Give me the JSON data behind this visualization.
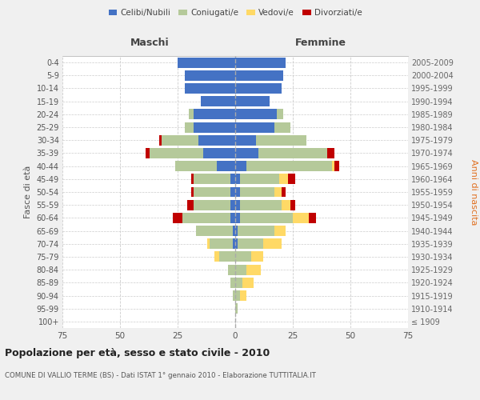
{
  "age_groups": [
    "100+",
    "95-99",
    "90-94",
    "85-89",
    "80-84",
    "75-79",
    "70-74",
    "65-69",
    "60-64",
    "55-59",
    "50-54",
    "45-49",
    "40-44",
    "35-39",
    "30-34",
    "25-29",
    "20-24",
    "15-19",
    "10-14",
    "5-9",
    "0-4"
  ],
  "birth_years": [
    "≤ 1909",
    "1910-1914",
    "1915-1919",
    "1920-1924",
    "1925-1929",
    "1930-1934",
    "1935-1939",
    "1940-1944",
    "1945-1949",
    "1950-1954",
    "1955-1959",
    "1960-1964",
    "1965-1969",
    "1970-1974",
    "1975-1979",
    "1980-1984",
    "1985-1989",
    "1990-1994",
    "1995-1999",
    "2000-2004",
    "2005-2009"
  ],
  "male": {
    "celibi": [
      0,
      0,
      0,
      0,
      0,
      0,
      1,
      1,
      2,
      2,
      2,
      2,
      8,
      14,
      16,
      18,
      18,
      15,
      22,
      22,
      25
    ],
    "coniugati": [
      0,
      0,
      1,
      2,
      3,
      7,
      10,
      16,
      21,
      16,
      16,
      16,
      18,
      23,
      16,
      4,
      2,
      0,
      0,
      0,
      0
    ],
    "vedovi": [
      0,
      0,
      0,
      0,
      0,
      2,
      1,
      0,
      0,
      0,
      0,
      0,
      0,
      0,
      0,
      0,
      0,
      0,
      0,
      0,
      0
    ],
    "divorziati": [
      0,
      0,
      0,
      0,
      0,
      0,
      0,
      0,
      4,
      3,
      1,
      1,
      0,
      2,
      1,
      0,
      0,
      0,
      0,
      0,
      0
    ]
  },
  "female": {
    "nubili": [
      0,
      0,
      0,
      0,
      0,
      0,
      1,
      1,
      2,
      2,
      2,
      2,
      5,
      10,
      9,
      17,
      18,
      15,
      20,
      21,
      22
    ],
    "coniugate": [
      0,
      1,
      2,
      3,
      5,
      7,
      11,
      16,
      23,
      18,
      15,
      17,
      37,
      30,
      22,
      7,
      3,
      0,
      0,
      0,
      0
    ],
    "vedove": [
      0,
      0,
      3,
      5,
      6,
      5,
      8,
      5,
      7,
      4,
      3,
      4,
      1,
      0,
      0,
      0,
      0,
      0,
      0,
      0,
      0
    ],
    "divorziate": [
      0,
      0,
      0,
      0,
      0,
      0,
      0,
      0,
      3,
      2,
      2,
      3,
      2,
      3,
      0,
      0,
      0,
      0,
      0,
      0,
      0
    ]
  },
  "colors": {
    "celibi": "#4472C4",
    "coniugati": "#B5C99A",
    "vedovi": "#FFD966",
    "divorziati": "#C00000"
  },
  "title": "Popolazione per età, sesso e stato civile - 2010",
  "subtitle": "COMUNE DI VALLIO TERME (BS) - Dati ISTAT 1° gennaio 2010 - Elaborazione TUTTITALIA.IT",
  "xlabel_left": "Maschi",
  "xlabel_right": "Femmine",
  "ylabel_left": "Fasce di età",
  "ylabel_right": "Anni di nascita",
  "xlim": 75,
  "legend_labels": [
    "Celibi/Nubili",
    "Coniugati/e",
    "Vedovi/e",
    "Divorziati/e"
  ],
  "bg_color": "#f0f0f0",
  "plot_bg": "#ffffff"
}
